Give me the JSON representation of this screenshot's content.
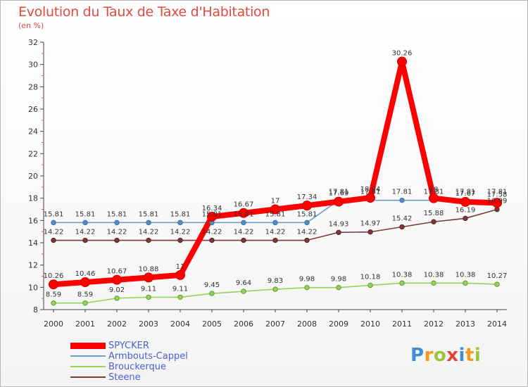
{
  "chart_data": {
    "type": "line",
    "title": "Evolution du Taux de Taxe d'Habitation",
    "subtitle": "(en %)",
    "x": [
      "2000",
      "2001",
      "2002",
      "2003",
      "2004",
      "2005",
      "2006",
      "2007",
      "2008",
      "2009",
      "2010",
      "2011",
      "2012",
      "2013",
      "2014"
    ],
    "ylim": [
      8,
      32
    ],
    "yticks": [
      8,
      10,
      12,
      14,
      16,
      18,
      20,
      22,
      24,
      26,
      28,
      30,
      32
    ],
    "grid": false,
    "legend_position": "bottom-left",
    "series": [
      {
        "name": "SPYCKER",
        "color": "#ff0000",
        "values": [
          10.26,
          10.46,
          10.67,
          10.88,
          11.1,
          16.34,
          16.67,
          17,
          17.34,
          17.69,
          18.04,
          30.26,
          18,
          17.67,
          17.58
        ],
        "labels": [
          "10.26",
          "10.46",
          "10.67",
          "10.88",
          "11",
          "16.34",
          "16.67",
          "17",
          "17.34",
          "17.69",
          "18.04",
          "30.26",
          "18",
          "17.67",
          "17.58"
        ]
      },
      {
        "name": "Armbouts-Cappel",
        "color": "#6e9fc9",
        "values": [
          15.81,
          15.81,
          15.81,
          15.81,
          15.81,
          15.81,
          15.81,
          15.81,
          15.81,
          17.81,
          17.81,
          17.81,
          17.81,
          17.81,
          17.81
        ],
        "labels": [
          "15.81",
          "15.81",
          "15.81",
          "15.81",
          "15.81",
          "15.81",
          "15.81",
          "15.81",
          "15.81",
          "17.81",
          "17.81",
          "17.81",
          "17.81",
          "17.81",
          "17.81"
        ]
      },
      {
        "name": "Brouckerque",
        "color": "#97d25a",
        "values": [
          8.59,
          8.59,
          9.02,
          9.11,
          9.11,
          9.45,
          9.64,
          9.83,
          9.98,
          9.98,
          10.18,
          10.38,
          10.38,
          10.38,
          10.27
        ],
        "labels": [
          "8.59",
          "8.59",
          "9.02",
          "9.11",
          "9.11",
          "9.45",
          "9.64",
          "9.83",
          "9.98",
          "9.98",
          "10.18",
          "10.38",
          "10.38",
          "10.38",
          "10.27"
        ]
      },
      {
        "name": "Steene",
        "color": "#7a3a3a",
        "values": [
          14.22,
          14.22,
          14.22,
          14.22,
          14.22,
          14.22,
          14.22,
          14.22,
          14.22,
          14.93,
          14.97,
          15.42,
          15.88,
          16.19,
          16.99
        ],
        "labels": [
          "14.22",
          "14.22",
          "14.22",
          "14.22",
          "14.22",
          "14.22",
          "14.22",
          "14.22",
          "14.22",
          "14.93",
          "14.97",
          "15.42",
          "15.88",
          "16.19",
          "16.99"
        ]
      }
    ]
  },
  "logo": {
    "text": "Proxiti",
    "letters": [
      "P",
      "r",
      "o",
      "x",
      "i",
      "t",
      "i"
    ],
    "colors": [
      "#3d8fd6",
      "#f39a1e",
      "#9ac43c",
      "#e8403a",
      "#3d8fd6",
      "#f39a1e",
      "#9ac43c"
    ]
  }
}
